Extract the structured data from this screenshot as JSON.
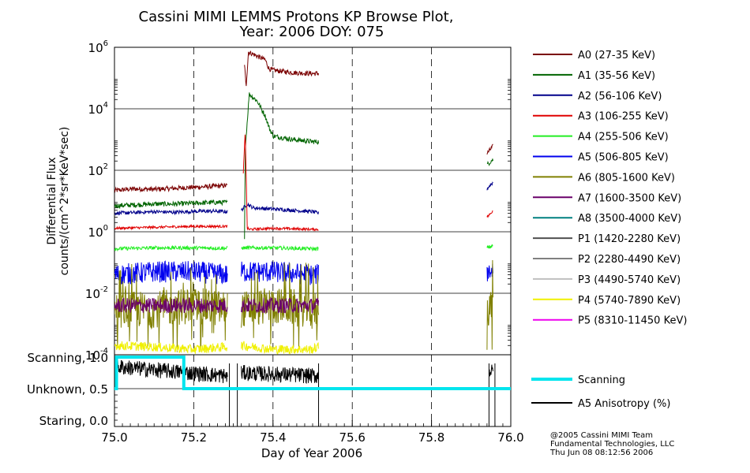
{
  "title_line1": "Cassini MIMI LEMMS Protons KP Browse Plot,",
  "title_line2": "Year: 2006 DOY: 075",
  "credits": [
    "@2005 Cassini MIMI Team",
    "Fundamental Technologies, LLC",
    "Thu Jun 08 08:12:56 2006"
  ],
  "chart_data": [
    {
      "type": "line",
      "ylabel": "Differential Flux",
      "ylabel2": "counts/(cm^2*sr*KeV*sec)",
      "yscale": "log",
      "ylim": [
        0.0001,
        1000000
      ],
      "yticks": [
        {
          "base": "10",
          "exp": "6",
          "value": 1000000
        },
        {
          "base": "10",
          "exp": "4",
          "value": 10000
        },
        {
          "base": "10",
          "exp": "2",
          "value": 100
        },
        {
          "base": "10",
          "exp": "0",
          "value": 1
        },
        {
          "base": "10",
          "exp": "-2",
          "value": 0.01
        },
        {
          "base": "10",
          "exp": "-4",
          "value": 0.0001
        }
      ],
      "xlim": [
        75.0,
        76.0
      ],
      "grid": true,
      "legend_position": "right",
      "series": [
        {
          "name": "A0 (27-35 KeV)",
          "color": "#7a0000",
          "segments": [
            {
              "x": [
                75.0,
                75.05,
                75.1,
                75.15,
                75.2,
                75.25,
                75.285
              ],
              "y": [
                22,
                25,
                24,
                26,
                28,
                30,
                32
              ]
            },
            {
              "x": [
                75.328,
                75.332,
                75.338,
                75.35,
                75.37,
                75.38,
                75.39,
                75.4,
                75.45,
                75.5,
                75.515
              ],
              "y": [
                300000,
                50000,
                700000,
                600000,
                450000,
                400000,
                200000,
                180000,
                150000,
                140000,
                140000
              ]
            },
            {
              "x": [
                75.94,
                75.95,
                75.955
              ],
              "y": [
                350,
                500,
                600
              ]
            }
          ]
        },
        {
          "name": "A1 (35-56 KeV)",
          "color": "#006400",
          "segments": [
            {
              "x": [
                75.0,
                75.05,
                75.1,
                75.15,
                75.2,
                75.25,
                75.285
              ],
              "y": [
                7,
                7.5,
                8,
                8,
                8.5,
                9,
                9
              ]
            },
            {
              "x": [
                75.328,
                75.33,
                75.34,
                75.36,
                75.38,
                75.39,
                75.4,
                75.45,
                75.5,
                75.515
              ],
              "y": [
                0.5,
                500,
                30000,
                18000,
                6000,
                2500,
                1300,
                1000,
                850,
                850
              ]
            },
            {
              "x": [
                75.94,
                75.95,
                75.955
              ],
              "y": [
                150,
                200,
                220
              ]
            }
          ]
        },
        {
          "name": "A2 (56-106 KeV)",
          "color": "#00008b",
          "segments": [
            {
              "x": [
                75.0,
                75.05,
                75.1,
                75.15,
                75.2,
                75.25,
                75.285
              ],
              "y": [
                4,
                4.2,
                4.5,
                4.3,
                4.6,
                4.7,
                4.5
              ]
            },
            {
              "x": [
                75.32,
                75.335,
                75.35,
                75.4,
                75.45,
                75.5,
                75.515
              ],
              "y": [
                5,
                8,
                6,
                5.5,
                5,
                4.5,
                4
              ]
            },
            {
              "x": [
                75.94,
                75.95,
                75.955
              ],
              "y": [
                25,
                35,
                40
              ]
            }
          ]
        },
        {
          "name": "A3 (106-255 KeV)",
          "color": "#e00000",
          "segments": [
            {
              "x": [
                75.0,
                75.1,
                75.2,
                75.285
              ],
              "y": [
                1.3,
                1.4,
                1.5,
                1.5
              ]
            },
            {
              "x": [
                75.325,
                75.33,
                75.335,
                75.34,
                75.4,
                75.5,
                75.515
              ],
              "y": [
                80,
                2000,
                1.3,
                1.2,
                1.3,
                1.2,
                1.2
              ]
            },
            {
              "x": [
                75.94,
                75.95,
                75.955
              ],
              "y": [
                3,
                4,
                5
              ]
            }
          ]
        },
        {
          "name": "A4 (255-506 KeV)",
          "color": "#22ee22",
          "segments": [
            {
              "x": [
                75.0,
                75.1,
                75.2,
                75.285
              ],
              "y": [
                0.28,
                0.3,
                0.3,
                0.29
              ]
            },
            {
              "x": [
                75.32,
                75.4,
                75.5,
                75.515
              ],
              "y": [
                0.3,
                0.3,
                0.28,
                0.28
              ]
            },
            {
              "x": [
                75.94,
                75.955
              ],
              "y": [
                0.3,
                0.35
              ]
            }
          ]
        },
        {
          "name": "A5 (506-805 KeV)",
          "color": "#0000ee",
          "segments": [
            {
              "x": [
                75.0,
                75.1,
                75.2,
                75.285
              ],
              "y": [
                0.04,
                0.05,
                0.05,
                0.04
              ]
            },
            {
              "x": [
                75.32,
                75.4,
                75.5,
                75.515
              ],
              "y": [
                0.05,
                0.05,
                0.04,
                0.04
              ]
            },
            {
              "x": [
                75.94,
                75.955
              ],
              "y": [
                0.05,
                0.06
              ]
            }
          ]
        },
        {
          "name": "A6 (805-1600 KeV)",
          "color": "#808000",
          "segments": [
            {
              "x": [
                75.0,
                75.1,
                75.2,
                75.285
              ],
              "y": [
                0.003,
                0.003,
                0.004,
                0.003
              ]
            },
            {
              "x": [
                75.32,
                75.4,
                75.5,
                75.515
              ],
              "y": [
                0.003,
                0.004,
                0.003,
                0.003
              ]
            },
            {
              "x": [
                75.94,
                75.955
              ],
              "y": [
                0.003,
                0.004
              ]
            }
          ]
        },
        {
          "name": "A7 (1600-3500 KeV)",
          "color": "#6a006a",
          "segments": [
            {
              "x": [
                75.0,
                75.1,
                75.2,
                75.285
              ],
              "y": [
                0.004,
                0.004,
                0.004,
                0.004
              ]
            },
            {
              "x": [
                75.32,
                75.4,
                75.5,
                75.515
              ],
              "y": [
                0.004,
                0.004,
                0.004,
                0.004
              ]
            }
          ]
        },
        {
          "name": "A8 (3500-4000 KeV)",
          "color": "#008080",
          "segments": []
        },
        {
          "name": "P1 (1420-2280 KeV)",
          "color": "#505050",
          "segments": []
        },
        {
          "name": "P2 (2280-4490 KeV)",
          "color": "#808080",
          "segments": []
        },
        {
          "name": "P3 (4490-5740 KeV)",
          "color": "#bfbfbf",
          "segments": []
        },
        {
          "name": "P4 (5740-7890 KeV)",
          "color": "#f0f000",
          "segments": [
            {
              "x": [
                75.0,
                75.1,
                75.2,
                75.285
              ],
              "y": [
                0.0002,
                0.00018,
                0.00015,
                0.00018
              ]
            },
            {
              "x": [
                75.32,
                75.4,
                75.5,
                75.515
              ],
              "y": [
                0.0002,
                0.00015,
                0.00015,
                0.00018
              ]
            }
          ]
        },
        {
          "name": "P5 (8310-11450 KeV)",
          "color": "#ee00ee",
          "segments": []
        }
      ]
    },
    {
      "type": "line",
      "xlabel": "Day of Year 2006",
      "xlim": [
        75.0,
        76.0
      ],
      "xticks": [
        "75.0",
        "75.2",
        "75.4",
        "75.6",
        "75.8",
        "76.0"
      ],
      "ylim": [
        0.0,
        1.0
      ],
      "yticks": [
        {
          "label": "Scanning, 1.0",
          "value": 1.0
        },
        {
          "label": "Unknown, 0.5",
          "value": 0.5
        },
        {
          "label": "Staring, 0.0",
          "value": 0.0
        }
      ],
      "legend_position": "right",
      "series": [
        {
          "name": "Scanning",
          "color": "#00e5ee",
          "x": [
            75.0,
            75.0,
            75.005,
            75.005,
            75.175,
            75.175,
            76.0
          ],
          "y": [
            0.5,
            0.5,
            0.5,
            1.0,
            1.0,
            0.5,
            0.5
          ]
        },
        {
          "name": "A5 Anisotropy (%)",
          "color": "#000000",
          "segments": [
            {
              "x": [
                75.0,
                75.1,
                75.2,
                75.285
              ],
              "y": [
                0.85,
                0.9,
                0.8,
                0.7
              ]
            },
            {
              "x": [
                75.32,
                75.4,
                75.5,
                75.515
              ],
              "y": [
                0.75,
                0.7,
                0.72,
                0.7
              ]
            },
            {
              "x": [
                75.945,
                75.955
              ],
              "y": [
                0.8,
                0.75
              ]
            }
          ]
        }
      ]
    }
  ]
}
